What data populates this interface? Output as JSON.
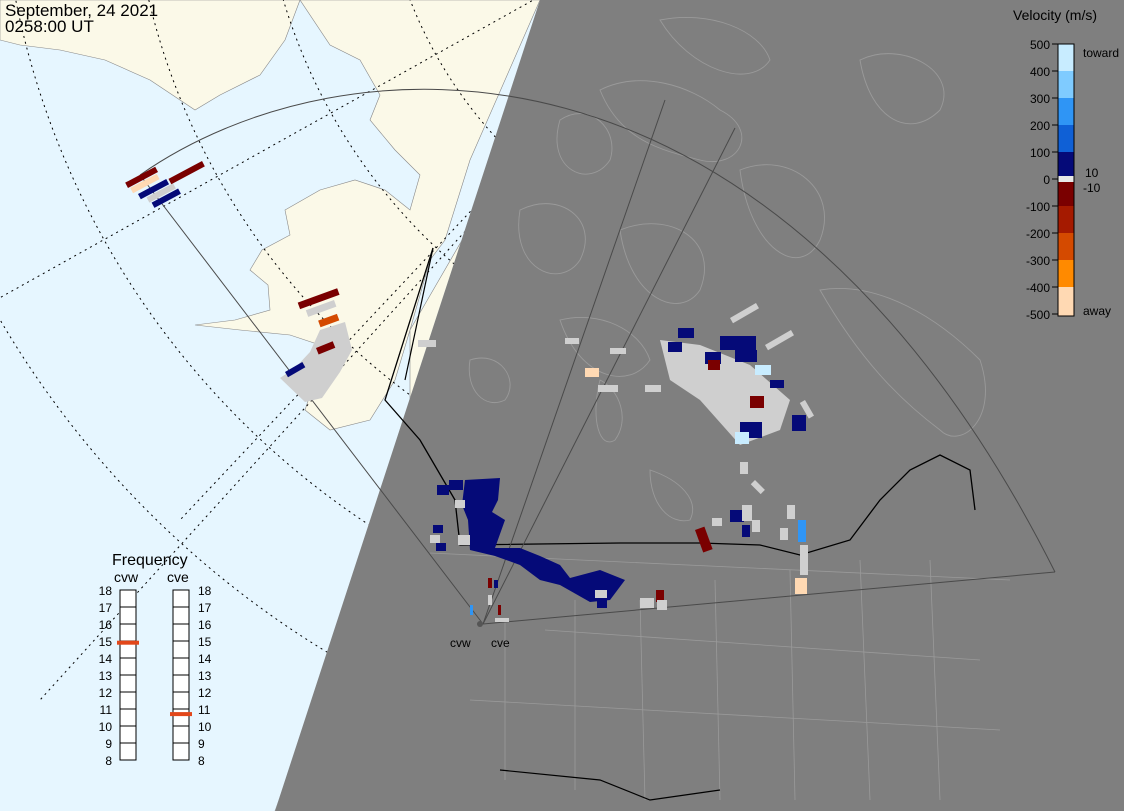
{
  "header": {
    "date": "September, 24 2021",
    "time": "0258:00 UT"
  },
  "velocity_scale": {
    "title": "Velocity (m/s)",
    "ticks": [
      "500",
      "400",
      "300",
      "200",
      "100",
      "0",
      "-100",
      "-200",
      "-300",
      "-400",
      "-500"
    ],
    "toward_label": "toward",
    "away_label": "away",
    "pos_threshold": "10",
    "neg_threshold": "-10",
    "colors": [
      "#c8ecff",
      "#7fcbff",
      "#2f95f5",
      "#0f60d6",
      "#0a2fa8",
      "#050a78",
      "#e8e8e8",
      "#7a0000",
      "#a51a00",
      "#d44a00",
      "#ff8a00",
      "#ffd9b3"
    ]
  },
  "frequency_panel": {
    "title": "Frequency",
    "ticks": [
      "18",
      "17",
      "16",
      "15",
      "14",
      "13",
      "12",
      "11",
      "10",
      "9",
      "8"
    ],
    "radars": [
      {
        "name": "cvw",
        "frequency": 14.9
      },
      {
        "name": "cve",
        "frequency": 10.7
      }
    ],
    "marker_color": "#e2471a"
  },
  "map_colors": {
    "ocean": "#e6f6ff",
    "land": "#fbf9e8",
    "night": "#7f7f7f",
    "ground_scatter": "#cfcfcf"
  },
  "radar_sites": {
    "cvw_label": "cvw",
    "cve_label": "cve"
  }
}
